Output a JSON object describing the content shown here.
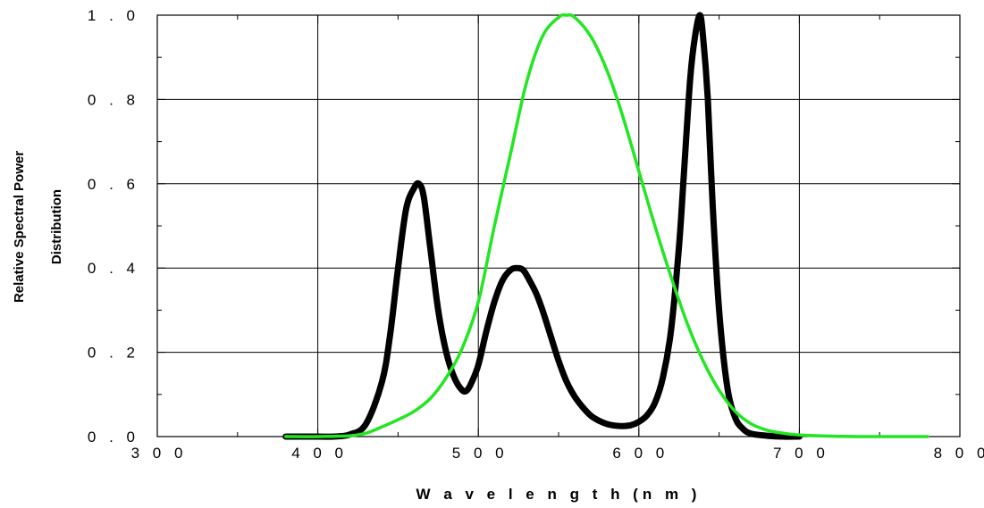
{
  "chart_data": {
    "type": "line",
    "title": "",
    "xlabel": "W a v e l e n g t h (n m )",
    "ylabel_line1": "Relative Spectral Power",
    "ylabel_line2": "Distribution",
    "xlim": [
      300,
      800
    ],
    "ylim": [
      0,
      1.0
    ],
    "x_ticks": [
      300,
      400,
      500,
      600,
      700,
      800
    ],
    "x_tick_labels": [
      "3 0 0",
      "4 0 0",
      "5 0 0",
      "6 0 0",
      "7 0 0",
      "8 0 0"
    ],
    "y_ticks": [
      0,
      0.2,
      0.4,
      0.6,
      0.8,
      1.0
    ],
    "y_tick_labels": [
      "0 . 0",
      "0 . 2",
      "0 . 4",
      "0 . 6",
      "0 . 8",
      "1 . 0"
    ],
    "grid": true,
    "series": [
      {
        "color": "#000000",
        "x": [
          380,
          400,
          410,
          420,
          430,
          440,
          445,
          450,
          455,
          460,
          463,
          466,
          470,
          475,
          480,
          485,
          490,
          493,
          496,
          500,
          505,
          510,
          515,
          520,
          524,
          528,
          532,
          536,
          540,
          545,
          550,
          555,
          560,
          565,
          570,
          575,
          580,
          585,
          590,
          595,
          600,
          605,
          610,
          615,
          620,
          625,
          628,
          632,
          635,
          638,
          640,
          643,
          646,
          650,
          655,
          660,
          665,
          670,
          680,
          690,
          700
        ],
        "y": [
          0.0,
          0.0,
          0.0,
          0.005,
          0.03,
          0.13,
          0.24,
          0.4,
          0.54,
          0.59,
          0.6,
          0.57,
          0.45,
          0.3,
          0.2,
          0.14,
          0.11,
          0.11,
          0.13,
          0.17,
          0.25,
          0.32,
          0.37,
          0.395,
          0.4,
          0.395,
          0.37,
          0.34,
          0.3,
          0.24,
          0.18,
          0.13,
          0.095,
          0.07,
          0.05,
          0.038,
          0.03,
          0.026,
          0.025,
          0.027,
          0.035,
          0.05,
          0.08,
          0.14,
          0.25,
          0.45,
          0.62,
          0.85,
          0.95,
          1.0,
          0.95,
          0.8,
          0.55,
          0.3,
          0.12,
          0.045,
          0.018,
          0.007,
          0.002,
          0.0,
          0.0
        ]
      },
      {
        "color": "#22e622",
        "x": [
          380,
          400,
          420,
          430,
          440,
          450,
          460,
          470,
          480,
          490,
          500,
          510,
          520,
          530,
          540,
          550,
          555,
          560,
          570,
          580,
          590,
          600,
          610,
          620,
          630,
          640,
          650,
          660,
          670,
          680,
          690,
          700,
          720,
          740,
          760,
          780
        ],
        "y": [
          0.0,
          0.0,
          0.002,
          0.008,
          0.023,
          0.04,
          0.06,
          0.09,
          0.14,
          0.21,
          0.32,
          0.5,
          0.67,
          0.84,
          0.95,
          0.995,
          1.0,
          0.995,
          0.95,
          0.87,
          0.76,
          0.63,
          0.5,
          0.38,
          0.27,
          0.18,
          0.11,
          0.06,
          0.03,
          0.015,
          0.008,
          0.004,
          0.001,
          0.0,
          0.0,
          0.0
        ]
      }
    ]
  }
}
